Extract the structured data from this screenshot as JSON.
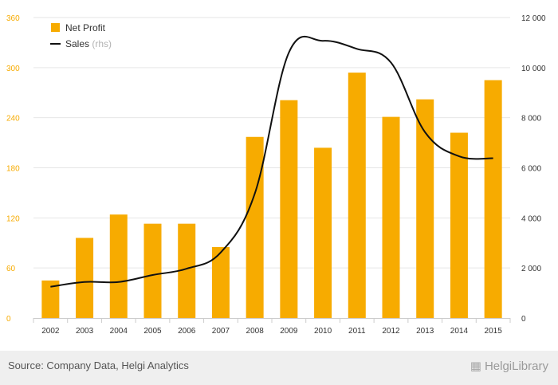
{
  "chart_data": {
    "type": "bar",
    "categories": [
      "2002",
      "2003",
      "2004",
      "2005",
      "2006",
      "2007",
      "2008",
      "2009",
      "2010",
      "2011",
      "2012",
      "2013",
      "2014",
      "2015"
    ],
    "series": [
      {
        "name": "Net Profit",
        "type": "bar",
        "axis": "left",
        "color": "#f7ab00",
        "values": [
          45,
          96,
          124,
          113,
          113,
          85,
          217,
          261,
          204,
          294,
          241,
          262,
          222,
          285
        ]
      },
      {
        "name": "Sales",
        "type": "line",
        "axis": "right",
        "color": "#111111",
        "values": [
          1250,
          1440,
          1440,
          1720,
          1970,
          2620,
          4970,
          10600,
          11070,
          10750,
          10200,
          7420,
          6460,
          6380
        ]
      }
    ],
    "y_left": {
      "min": 0,
      "max": 360,
      "ticks": [
        "0",
        "60",
        "120",
        "180",
        "240",
        "300",
        "360"
      ],
      "tick_color": "#f7ab00"
    },
    "y_right": {
      "min": 0,
      "max": 12000,
      "ticks": [
        "0",
        "2 000",
        "4 000",
        "6 000",
        "8 000",
        "10 000",
        "12 000"
      ]
    },
    "legend": {
      "position": "top-left",
      "items": [
        {
          "label": "Net Profit",
          "suffix": ""
        },
        {
          "label": "Sales",
          "suffix": " (rhs)"
        }
      ]
    },
    "grid": true,
    "title": "",
    "xlabel": "",
    "ylabel": ""
  },
  "footer": {
    "source": "Source: Company Data, Helgi Analytics",
    "brand": "HelgiLibrary",
    "brand_icon": "library-icon"
  }
}
